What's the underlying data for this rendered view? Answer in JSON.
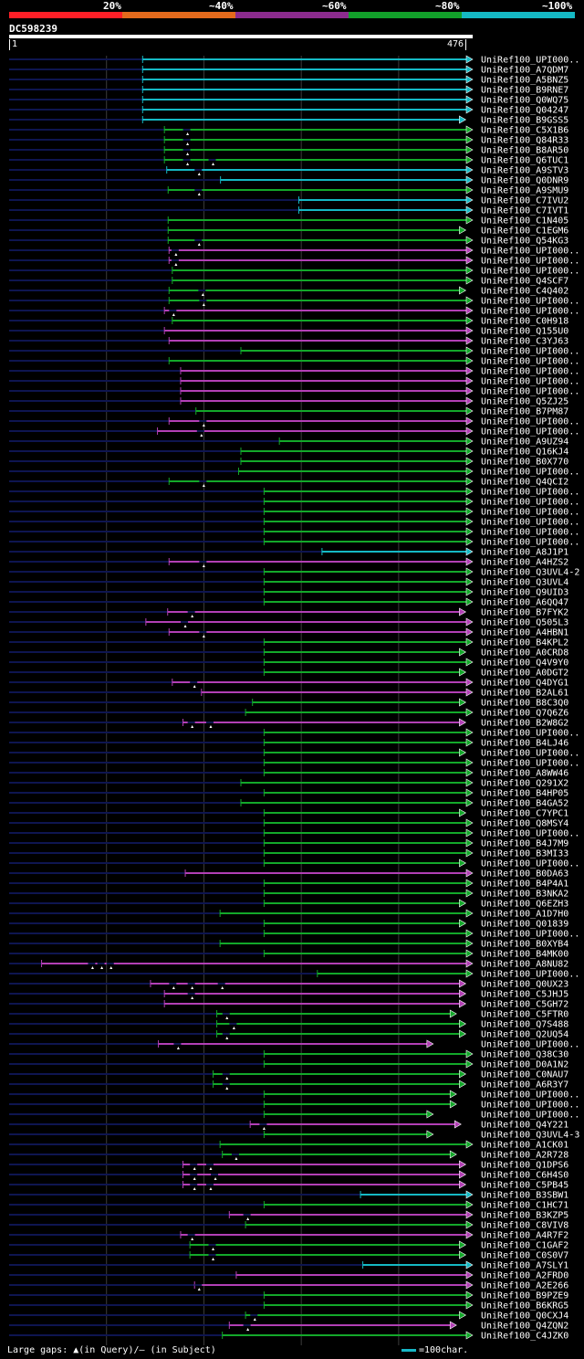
{
  "legend": {
    "labels": [
      "20%",
      "~40%",
      "~60%",
      "~80%",
      "~100%"
    ],
    "colors": [
      "#ff1f27",
      "#e46a1c",
      "#8c2b8e",
      "#12a02a",
      "#15b9c4"
    ]
  },
  "query": {
    "name": "DC598239",
    "start": "1",
    "end": "476",
    "length": 476
  },
  "colors": {
    "cyan": "#15b9c4",
    "green": "#13a82a",
    "magenta": "#b23fb5",
    "navy": "#0e1550",
    "grid": "#3c3c3c"
  },
  "footer": {
    "gaps_note": "Large gaps: ▲(in Query)/— (in Subject)",
    "scale_note": "=100char."
  },
  "hits": [
    {
      "label": "UniRef100_UPI000..",
      "color": "cyan",
      "start": 0.288,
      "gaps": []
    },
    {
      "label": "UniRef100_A7QDM7",
      "color": "cyan",
      "start": 0.288,
      "gaps": []
    },
    {
      "label": "UniRef100_A5BNZ5",
      "color": "cyan",
      "start": 0.288,
      "gaps": []
    },
    {
      "label": "UniRef100_B9RNE7",
      "color": "cyan",
      "start": 0.288,
      "gaps": []
    },
    {
      "label": "UniRef100_Q0WQ75",
      "color": "cyan",
      "start": 0.288,
      "gaps": []
    },
    {
      "label": "UniRef100_Q04247",
      "color": "cyan",
      "start": 0.288,
      "gaps": []
    },
    {
      "label": "UniRef100_B9GSS5",
      "color": "cyan",
      "start": 0.288,
      "end": 0.985,
      "gaps": []
    },
    {
      "label": "UniRef100_C5X1B6",
      "color": "green",
      "start": 0.335,
      "gaps": [
        0.385
      ]
    },
    {
      "label": "UniRef100_Q84R33",
      "color": "green",
      "start": 0.335,
      "gaps": [
        0.385
      ]
    },
    {
      "label": "UniRef100_B8AR50",
      "color": "green",
      "start": 0.335,
      "gaps": [
        0.385
      ]
    },
    {
      "label": "UniRef100_Q6TUC1",
      "color": "green",
      "start": 0.335,
      "gaps": [
        0.385,
        0.44
      ]
    },
    {
      "label": "UniRef100_A9STV3",
      "color": "cyan",
      "start": 0.34,
      "gaps": [
        0.41
      ]
    },
    {
      "label": "UniRef100_Q0DNR9",
      "color": "cyan",
      "start": 0.456,
      "gaps": []
    },
    {
      "label": "UniRef100_A9SMU9",
      "color": "green",
      "start": 0.343,
      "gaps": [
        0.41
      ]
    },
    {
      "label": "UniRef100_C7IVU2",
      "color": "cyan",
      "start": 0.625,
      "gaps": []
    },
    {
      "label": "UniRef100_C7IVT1",
      "color": "cyan",
      "start": 0.625,
      "gaps": []
    },
    {
      "label": "UniRef100_C1N405",
      "color": "green",
      "start": 0.343,
      "gaps": []
    },
    {
      "label": "UniRef100_C1EGM6",
      "color": "green",
      "start": 0.343,
      "end": 0.985,
      "gaps": []
    },
    {
      "label": "UniRef100_Q54KG3",
      "color": "green",
      "start": 0.343,
      "gaps": [
        0.41
      ]
    },
    {
      "label": "UniRef100_UPI000..",
      "color": "magenta",
      "start": 0.345,
      "gaps": [
        0.36
      ]
    },
    {
      "label": "UniRef100_UPI000..",
      "color": "magenta",
      "start": 0.345,
      "gaps": [
        0.36
      ]
    },
    {
      "label": "UniRef100_UPI000..",
      "color": "green",
      "start": 0.352,
      "gaps": []
    },
    {
      "label": "UniRef100_Q4SCF7",
      "color": "green",
      "start": 0.352,
      "gaps": []
    },
    {
      "label": "UniRef100_C4Q402",
      "color": "green",
      "start": 0.345,
      "end": 0.985,
      "gaps": [
        0.418
      ]
    },
    {
      "label": "UniRef100_UPI000..",
      "color": "green",
      "start": 0.345,
      "gaps": [
        0.42
      ]
    },
    {
      "label": "UniRef100_UPI000..",
      "color": "magenta",
      "start": 0.335,
      "gaps": [
        0.355
      ]
    },
    {
      "label": "UniRef100_C0H918",
      "color": "green",
      "start": 0.352,
      "gaps": []
    },
    {
      "label": "UniRef100_Q155U0",
      "color": "magenta",
      "start": 0.335,
      "gaps": []
    },
    {
      "label": "UniRef100_C3YJ63",
      "color": "magenta",
      "start": 0.345,
      "gaps": []
    },
    {
      "label": "UniRef100_UPI000..",
      "color": "green",
      "start": 0.5,
      "gaps": []
    },
    {
      "label": "UniRef100_UPI000..",
      "color": "green",
      "start": 0.345,
      "gaps": []
    },
    {
      "label": "UniRef100_UPI000..",
      "color": "magenta",
      "start": 0.37,
      "gaps": []
    },
    {
      "label": "UniRef100_UPI000..",
      "color": "magenta",
      "start": 0.37,
      "gaps": []
    },
    {
      "label": "UniRef100_UPI000..",
      "color": "magenta",
      "start": 0.37,
      "gaps": []
    },
    {
      "label": "UniRef100_Q5ZJ25",
      "color": "magenta",
      "start": 0.37,
      "gaps": []
    },
    {
      "label": "UniRef100_B7PM87",
      "color": "green",
      "start": 0.403,
      "gaps": []
    },
    {
      "label": "UniRef100_UPI000..",
      "color": "magenta",
      "start": 0.345,
      "gaps": [
        0.42
      ]
    },
    {
      "label": "UniRef100_UPI000..",
      "color": "magenta",
      "start": 0.32,
      "gaps": [
        0.415
      ]
    },
    {
      "label": "UniRef100_A9UZ94",
      "color": "green",
      "start": 0.583,
      "gaps": []
    },
    {
      "label": "UniRef100_Q16KJ4",
      "color": "green",
      "start": 0.5,
      "gaps": []
    },
    {
      "label": "UniRef100_B0X770",
      "color": "green",
      "start": 0.5,
      "gaps": []
    },
    {
      "label": "UniRef100_UPI000..",
      "color": "green",
      "start": 0.495,
      "gaps": []
    },
    {
      "label": "UniRef100_Q4QCI2",
      "color": "green",
      "start": 0.345,
      "gaps": [
        0.42
      ]
    },
    {
      "label": "UniRef100_UPI000..",
      "color": "green",
      "start": 0.55,
      "gaps": []
    },
    {
      "label": "UniRef100_UPI000..",
      "color": "green",
      "start": 0.55,
      "gaps": []
    },
    {
      "label": "UniRef100_UPI000..",
      "color": "green",
      "start": 0.55,
      "gaps": []
    },
    {
      "label": "UniRef100_UPI000..",
      "color": "green",
      "start": 0.55,
      "gaps": []
    },
    {
      "label": "UniRef100_UPI000..",
      "color": "green",
      "start": 0.55,
      "gaps": []
    },
    {
      "label": "UniRef100_UPI000..",
      "color": "green",
      "start": 0.55,
      "gaps": []
    },
    {
      "label": "UniRef100_A8J1P1",
      "color": "cyan",
      "start": 0.675,
      "gaps": []
    },
    {
      "label": "UniRef100_A4HZS2",
      "color": "magenta",
      "start": 0.345,
      "gaps": [
        0.42
      ]
    },
    {
      "label": "UniRef100_Q3UVL4-2",
      "color": "green",
      "start": 0.55,
      "gaps": []
    },
    {
      "label": "UniRef100_Q3UVL4",
      "color": "green",
      "start": 0.55,
      "gaps": []
    },
    {
      "label": "UniRef100_Q9UID3",
      "color": "green",
      "start": 0.55,
      "gaps": []
    },
    {
      "label": "UniRef100_A6QQ47",
      "color": "green",
      "start": 0.55,
      "gaps": []
    },
    {
      "label": "UniRef100_B7FYK2",
      "color": "magenta",
      "start": 0.342,
      "end": 0.985,
      "gaps": [
        0.395
      ]
    },
    {
      "label": "UniRef100_Q505L3",
      "color": "magenta",
      "start": 0.295,
      "gaps": [
        0.38
      ]
    },
    {
      "label": "UniRef100_A4HBN1",
      "color": "magenta",
      "start": 0.345,
      "gaps": [
        0.42
      ]
    },
    {
      "label": "UniRef100_B4KPL2",
      "color": "green",
      "start": 0.55,
      "gaps": []
    },
    {
      "label": "UniRef100_A0CRD8",
      "color": "green",
      "start": 0.55,
      "end": 0.985,
      "gaps": []
    },
    {
      "label": "UniRef100_Q4V9Y0",
      "color": "green",
      "start": 0.55,
      "gaps": []
    },
    {
      "label": "UniRef100_A0DGT2",
      "color": "green",
      "start": 0.55,
      "end": 0.985,
      "gaps": []
    },
    {
      "label": "UniRef100_Q4DYG1",
      "color": "magenta",
      "start": 0.352,
      "gaps": [
        0.4
      ]
    },
    {
      "label": "UniRef100_B2AL61",
      "color": "magenta",
      "start": 0.415,
      "gaps": []
    },
    {
      "label": "UniRef100_B8C3Q0",
      "color": "green",
      "start": 0.525,
      "end": 0.985,
      "gaps": []
    },
    {
      "label": "UniRef100_Q7Q6Z6",
      "color": "green",
      "start": 0.51,
      "gaps": []
    },
    {
      "label": "UniRef100_B2W8G2",
      "color": "magenta",
      "start": 0.375,
      "end": 0.985,
      "gaps": [
        0.395,
        0.435
      ]
    },
    {
      "label": "UniRef100_UPI000..",
      "color": "green",
      "start": 0.55,
      "gaps": []
    },
    {
      "label": "UniRef100_B4LJ46",
      "color": "green",
      "start": 0.55,
      "gaps": []
    },
    {
      "label": "UniRef100_UPI000..",
      "color": "green",
      "start": 0.55,
      "end": 0.985,
      "gaps": []
    },
    {
      "label": "UniRef100_UPI000..",
      "color": "green",
      "start": 0.55,
      "gaps": []
    },
    {
      "label": "UniRef100_A8WW46",
      "color": "green",
      "start": 0.55,
      "gaps": []
    },
    {
      "label": "UniRef100_Q291X2",
      "color": "green",
      "start": 0.5,
      "gaps": []
    },
    {
      "label": "UniRef100_B4HP05",
      "color": "green",
      "start": 0.55,
      "gaps": []
    },
    {
      "label": "UniRef100_B4GA52",
      "color": "green",
      "start": 0.5,
      "gaps": []
    },
    {
      "label": "UniRef100_C7YPC1",
      "color": "green",
      "start": 0.55,
      "end": 0.985,
      "gaps": []
    },
    {
      "label": "UniRef100_Q8MSY4",
      "color": "green",
      "start": 0.55,
      "gaps": []
    },
    {
      "label": "UniRef100_UPI000..",
      "color": "green",
      "start": 0.55,
      "gaps": []
    },
    {
      "label": "UniRef100_B4J7M9",
      "color": "green",
      "start": 0.55,
      "gaps": []
    },
    {
      "label": "UniRef100_B3MI33",
      "color": "green",
      "start": 0.55,
      "gaps": []
    },
    {
      "label": "UniRef100_UPI000..",
      "color": "green",
      "start": 0.55,
      "end": 0.985,
      "gaps": []
    },
    {
      "label": "UniRef100_B0DA63",
      "color": "magenta",
      "start": 0.38,
      "gaps": []
    },
    {
      "label": "UniRef100_B4P4A1",
      "color": "green",
      "start": 0.55,
      "gaps": []
    },
    {
      "label": "UniRef100_B3NKA2",
      "color": "green",
      "start": 0.55,
      "gaps": []
    },
    {
      "label": "UniRef100_Q6EZH3",
      "color": "green",
      "start": 0.55,
      "end": 0.985,
      "gaps": []
    },
    {
      "label": "UniRef100_A1D7H0",
      "color": "green",
      "start": 0.455,
      "gaps": []
    },
    {
      "label": "UniRef100_Q01839",
      "color": "green",
      "start": 0.55,
      "end": 0.985,
      "gaps": []
    },
    {
      "label": "UniRef100_UPI000..",
      "color": "green",
      "start": 0.55,
      "gaps": []
    },
    {
      "label": "UniRef100_B0XYB4",
      "color": "green",
      "start": 0.455,
      "gaps": []
    },
    {
      "label": "UniRef100_B4MK00",
      "color": "green",
      "start": 0.55,
      "gaps": []
    },
    {
      "label": "UniRef100_A8NU82",
      "color": "magenta",
      "start": 0.07,
      "gaps": [
        0.18,
        0.2,
        0.22
      ]
    },
    {
      "label": "UniRef100_UPI000..",
      "color": "green",
      "start": 0.665,
      "gaps": []
    },
    {
      "label": "UniRef100_Q0UX23",
      "color": "magenta",
      "start": 0.305,
      "end": 0.985,
      "gaps": [
        0.355,
        0.395,
        0.46
      ]
    },
    {
      "label": "UniRef100_C5JHJ5",
      "color": "magenta",
      "start": 0.335,
      "end": 0.985,
      "gaps": [
        0.395
      ]
    },
    {
      "label": "UniRef100_C5GH72",
      "color": "magenta",
      "start": 0.335,
      "end": 0.985,
      "gaps": []
    },
    {
      "label": "UniRef100_C5FTR0",
      "color": "green",
      "start": 0.448,
      "end": 0.965,
      "gaps": [
        0.47
      ]
    },
    {
      "label": "UniRef100_Q7S488",
      "color": "green",
      "start": 0.448,
      "end": 0.985,
      "gaps": [
        0.485
      ]
    },
    {
      "label": "UniRef100_Q2UQ54",
      "color": "green",
      "start": 0.448,
      "end": 0.985,
      "gaps": [
        0.47
      ]
    },
    {
      "label": "UniRef100_UPI000..",
      "color": "magenta",
      "start": 0.322,
      "end": 0.915,
      "gaps": [
        0.365
      ]
    },
    {
      "label": "UniRef100_Q38C30",
      "color": "green",
      "start": 0.55,
      "gaps": []
    },
    {
      "label": "UniRef100_D0A1N2",
      "color": "green",
      "start": 0.55,
      "gaps": []
    },
    {
      "label": "UniRef100_C0NAU7",
      "color": "green",
      "start": 0.44,
      "end": 0.985,
      "gaps": [
        0.47
      ]
    },
    {
      "label": "UniRef100_A6R3Y7",
      "color": "green",
      "start": 0.44,
      "end": 0.985,
      "gaps": [
        0.47
      ]
    },
    {
      "label": "UniRef100_UPI000..",
      "color": "green",
      "start": 0.55,
      "end": 0.965,
      "gaps": []
    },
    {
      "label": "UniRef100_UPI000..",
      "color": "green",
      "start": 0.55,
      "end": 0.965,
      "gaps": []
    },
    {
      "label": "UniRef100_UPI000..",
      "color": "green",
      "start": 0.55,
      "end": 0.915,
      "gaps": []
    },
    {
      "label": "UniRef100_Q4Y221",
      "color": "magenta",
      "start": 0.52,
      "end": 0.975,
      "gaps": [
        0.55
      ]
    },
    {
      "label": "UniRef100_Q3UVL4-3",
      "color": "green",
      "start": 0.55,
      "end": 0.915,
      "gaps": []
    },
    {
      "label": "UniRef100_A1CK01",
      "color": "green",
      "start": 0.455,
      "gaps": []
    },
    {
      "label": "UniRef100_A2R728",
      "color": "green",
      "start": 0.46,
      "end": 0.965,
      "gaps": [
        0.49
      ]
    },
    {
      "label": "UniRef100_Q1DPS6",
      "color": "magenta",
      "start": 0.375,
      "end": 0.985,
      "gaps": [
        0.4,
        0.435
      ]
    },
    {
      "label": "UniRef100_C6H4S0",
      "color": "magenta",
      "start": 0.375,
      "end": 0.985,
      "gaps": [
        0.4,
        0.445
      ]
    },
    {
      "label": "UniRef100_C5PB45",
      "color": "magenta",
      "start": 0.375,
      "end": 0.985,
      "gaps": [
        0.4,
        0.435
      ]
    },
    {
      "label": "UniRef100_B3SBW1",
      "color": "cyan",
      "start": 0.758,
      "gaps": []
    },
    {
      "label": "UniRef100_C1HC71",
      "color": "green",
      "start": 0.55,
      "gaps": []
    },
    {
      "label": "UniRef100_B3KZP5",
      "color": "magenta",
      "start": 0.475,
      "gaps": [
        0.515
      ]
    },
    {
      "label": "UniRef100_C8VIV8",
      "color": "green",
      "start": 0.51,
      "gaps": []
    },
    {
      "label": "UniRef100_A4R7F2",
      "color": "magenta",
      "start": 0.37,
      "gaps": [
        0.395
      ]
    },
    {
      "label": "UniRef100_C1GAF2",
      "color": "green",
      "start": 0.39,
      "end": 0.985,
      "gaps": [
        0.44
      ]
    },
    {
      "label": "UniRef100_C0S0V7",
      "color": "green",
      "start": 0.39,
      "end": 0.985,
      "gaps": [
        0.44
      ]
    },
    {
      "label": "UniRef100_A7SLY1",
      "color": "cyan",
      "start": 0.763,
      "gaps": []
    },
    {
      "label": "UniRef100_A2FRD0",
      "color": "magenta",
      "start": 0.49,
      "gaps": []
    },
    {
      "label": "UniRef100_A2E266",
      "color": "magenta",
      "start": 0.4,
      "gaps": [
        0.41
      ]
    },
    {
      "label": "UniRef100_B9PZE9",
      "color": "green",
      "start": 0.55,
      "gaps": []
    },
    {
      "label": "UniRef100_B6KRG5",
      "color": "green",
      "start": 0.55,
      "gaps": []
    },
    {
      "label": "UniRef100_Q0CXJ4",
      "color": "green",
      "start": 0.51,
      "end": 0.985,
      "gaps": [
        0.53
      ]
    },
    {
      "label": "UniRef100_Q4ZQN2",
      "color": "magenta",
      "start": 0.475,
      "end": 0.965,
      "gaps": [
        0.515
      ]
    },
    {
      "label": "UniRef100_C4JZK0",
      "color": "green",
      "start": 0.46,
      "gaps": []
    }
  ]
}
